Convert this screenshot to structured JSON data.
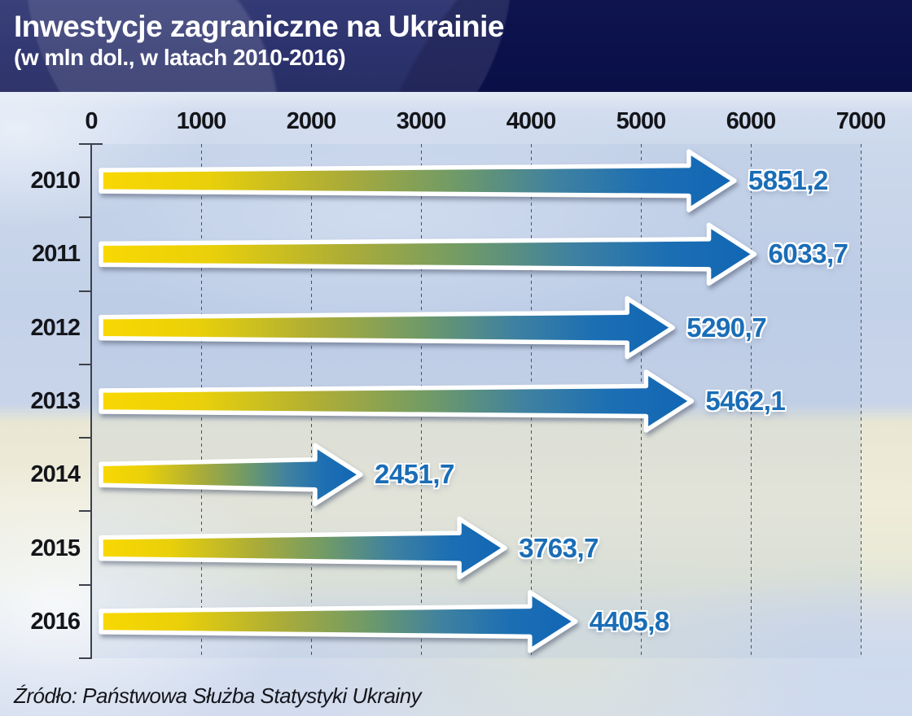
{
  "header": {
    "title": "Inwestycje zagraniczne na Ukrainie",
    "subtitle": "(w mln dol., w latach 2010-2016)"
  },
  "source": {
    "text": "Źródło: Państwowa Służba Statystyki Ukrainy"
  },
  "chart_data": {
    "type": "bar",
    "orientation": "horizontal",
    "title": "Inwestycje zagraniczne na Ukrainie",
    "subtitle": "(w mln dol., w latach 2010-2016)",
    "categories": [
      "2010",
      "2011",
      "2012",
      "2013",
      "2014",
      "2015",
      "2016"
    ],
    "values": [
      5851.2,
      6033.7,
      5290.7,
      5462.1,
      2451.7,
      3763.7,
      4405.8
    ],
    "value_labels": [
      "5851,2",
      "6033,7",
      "5290,7",
      "5462,1",
      "2451,7",
      "3763,7",
      "4405,8"
    ],
    "xlabel": "",
    "ylabel": "",
    "xlim": [
      0,
      7000
    ],
    "x_ticks": [
      0,
      1000,
      2000,
      3000,
      4000,
      5000,
      6000,
      7000
    ],
    "grid": "dashed-vertical",
    "legend": "none",
    "colors": {
      "bar_gradient_start": "#f9d802",
      "bar_gradient_mid": "#abac38",
      "bar_gradient_end": "#1166b5",
      "bar_outline": "#ffffff",
      "value_text": "#1a6db6",
      "axis_text": "#14151a",
      "header_background": "#141b5c",
      "header_text": "#ffffff"
    }
  }
}
